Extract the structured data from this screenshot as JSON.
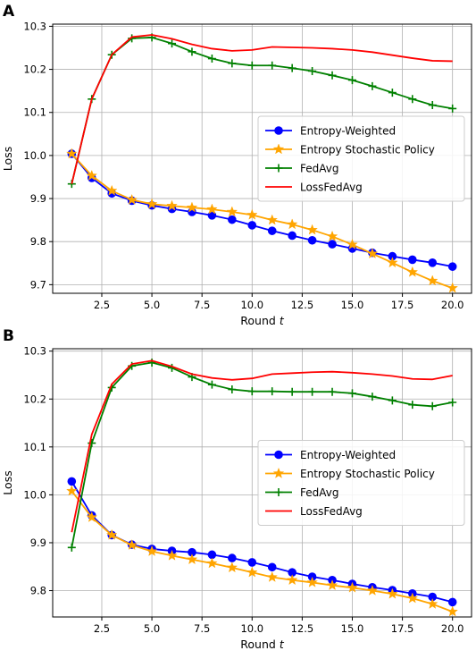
{
  "chart_data": [
    {
      "panel": "A",
      "type": "line",
      "xlabel": "Round t",
      "ylabel": "Loss",
      "xlim": [
        0.05,
        20.95
      ],
      "ylim": [
        9.68,
        10.305
      ],
      "xticks": [
        2.5,
        5.0,
        7.5,
        10.0,
        12.5,
        15.0,
        17.5,
        20.0
      ],
      "xtick_labels": [
        "2.5",
        "5.0",
        "7.5",
        "10.0",
        "12.5",
        "15.0",
        "17.5",
        "20.0"
      ],
      "yticks": [
        9.7,
        9.8,
        9.9,
        10.0,
        10.1,
        10.2,
        10.3
      ],
      "ytick_labels": [
        "9.7",
        "9.8",
        "9.9",
        "10.0",
        "10.1",
        "10.2",
        "10.3"
      ],
      "grid": true,
      "legend_position": "center-right",
      "x": [
        1,
        2,
        3,
        4,
        5,
        6,
        7,
        8,
        9,
        10,
        11,
        12,
        13,
        14,
        15,
        16,
        17,
        18,
        19,
        20
      ],
      "series": [
        {
          "name": "Entropy-Weighted",
          "color": "#0000ff",
          "marker": "circle",
          "values": [
            10.004,
            9.948,
            9.912,
            9.895,
            9.884,
            9.876,
            9.869,
            9.861,
            9.851,
            9.838,
            9.825,
            9.814,
            9.803,
            9.794,
            9.784,
            9.774,
            9.766,
            9.758,
            9.751,
            9.742
          ]
        },
        {
          "name": "Entropy Stochastic Policy",
          "color": "#ffa500",
          "marker": "star",
          "values": [
            10.004,
            9.953,
            9.918,
            9.897,
            9.887,
            9.883,
            9.879,
            9.875,
            9.869,
            9.862,
            9.85,
            9.84,
            9.827,
            9.812,
            9.793,
            9.772,
            9.751,
            9.729,
            9.709,
            9.692
          ]
        },
        {
          "name": "FedAvg",
          "color": "#008000",
          "marker": "plus",
          "values": [
            9.934,
            10.131,
            10.234,
            10.272,
            10.274,
            10.26,
            10.241,
            10.225,
            10.214,
            10.209,
            10.209,
            10.203,
            10.196,
            10.186,
            10.175,
            10.161,
            10.146,
            10.131,
            10.117,
            10.109
          ]
        },
        {
          "name": "LossFedAvg",
          "color": "#ff0000",
          "marker": "none",
          "values": [
            9.934,
            10.131,
            10.234,
            10.275,
            10.28,
            10.271,
            10.258,
            10.248,
            10.243,
            10.245,
            10.252,
            10.251,
            10.25,
            10.248,
            10.245,
            10.24,
            10.233,
            10.226,
            10.22,
            10.219
          ]
        }
      ]
    },
    {
      "panel": "B",
      "type": "line",
      "xlabel": "Round t",
      "ylabel": "Loss",
      "xlim": [
        0.05,
        20.95
      ],
      "ylim": [
        9.745,
        10.305
      ],
      "xticks": [
        2.5,
        5.0,
        7.5,
        10.0,
        12.5,
        15.0,
        17.5,
        20.0
      ],
      "xtick_labels": [
        "2.5",
        "5.0",
        "7.5",
        "10.0",
        "12.5",
        "15.0",
        "17.5",
        "20.0"
      ],
      "yticks": [
        9.8,
        9.9,
        10.0,
        10.1,
        10.2,
        10.3
      ],
      "ytick_labels": [
        "9.8",
        "9.9",
        "10.0",
        "10.1",
        "10.2",
        "10.3"
      ],
      "grid": true,
      "legend_position": "center-right",
      "x": [
        1,
        2,
        3,
        4,
        5,
        6,
        7,
        8,
        9,
        10,
        11,
        12,
        13,
        14,
        15,
        16,
        17,
        18,
        19,
        20
      ],
      "series": [
        {
          "name": "Entropy-Weighted",
          "color": "#0000ff",
          "marker": "circle",
          "values": [
            10.028,
            9.957,
            9.916,
            9.896,
            9.887,
            9.883,
            9.88,
            9.875,
            9.868,
            9.859,
            9.849,
            9.838,
            9.829,
            9.822,
            9.814,
            9.807,
            9.801,
            9.794,
            9.787,
            9.776
          ]
        },
        {
          "name": "Entropy Stochastic Policy",
          "color": "#ffa500",
          "marker": "star",
          "values": [
            10.008,
            9.953,
            9.916,
            9.895,
            9.882,
            9.873,
            9.865,
            9.857,
            9.848,
            9.838,
            9.828,
            9.822,
            9.817,
            9.811,
            9.806,
            9.8,
            9.793,
            9.784,
            9.772,
            9.756
          ]
        },
        {
          "name": "FedAvg",
          "color": "#008000",
          "marker": "plus",
          "values": [
            9.89,
            10.108,
            10.224,
            10.269,
            10.276,
            10.265,
            10.246,
            10.23,
            10.22,
            10.216,
            10.216,
            10.215,
            10.215,
            10.215,
            10.212,
            10.205,
            10.197,
            10.188,
            10.185,
            10.193
          ]
        },
        {
          "name": "LossFedAvg",
          "color": "#ff0000",
          "marker": "none",
          "values": [
            9.922,
            10.126,
            10.231,
            10.273,
            10.28,
            10.268,
            10.252,
            10.244,
            10.24,
            10.243,
            10.252,
            10.254,
            10.256,
            10.257,
            10.255,
            10.252,
            10.248,
            10.242,
            10.241,
            10.249
          ]
        }
      ]
    }
  ]
}
